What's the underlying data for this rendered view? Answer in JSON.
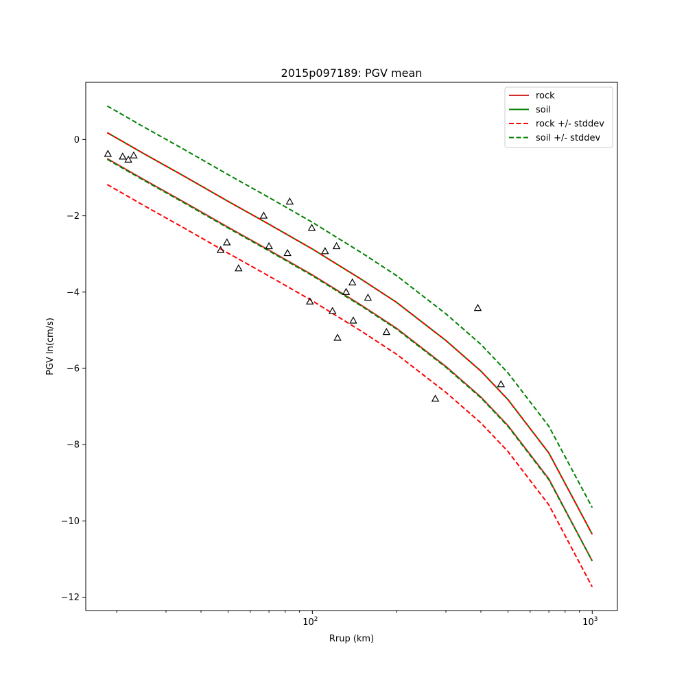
{
  "chart_data": {
    "type": "line",
    "title": "2015p097189: PGV mean",
    "xlabel": "Rrup (km)",
    "ylabel": "PGV ln(cm/s)",
    "xscale": "log",
    "xlim": [
      15.5,
      1230
    ],
    "ylim": [
      -12.35,
      1.5
    ],
    "grid": false,
    "legend_position": "top-right",
    "x_ticks": [
      {
        "value": 100,
        "label": "10",
        "sup": "2"
      },
      {
        "value": 1000,
        "label": "10",
        "sup": "3"
      }
    ],
    "y_ticks": [
      {
        "value": 0,
        "label": "0"
      },
      {
        "value": -2,
        "label": "−2"
      },
      {
        "value": -4,
        "label": "−4"
      },
      {
        "value": -6,
        "label": "−6"
      },
      {
        "value": -8,
        "label": "−8"
      },
      {
        "value": -10,
        "label": "−10"
      },
      {
        "value": -12,
        "label": "−12"
      }
    ],
    "x": [
      18.5,
      25,
      35,
      50,
      70,
      100,
      150,
      200,
      300,
      400,
      500,
      700,
      1000
    ],
    "series": [
      {
        "name": "rock",
        "color": "#d62728",
        "dash": false,
        "role": "mean",
        "values": [
          -0.5,
          -1.05,
          -1.65,
          -2.3,
          -2.9,
          -3.55,
          -4.35,
          -4.95,
          -5.95,
          -6.75,
          -7.5,
          -8.9,
          -11.05
        ]
      },
      {
        "name": "soil",
        "color": "#008000",
        "dash": false,
        "role": "mean",
        "values": [
          0.18,
          -0.37,
          -0.97,
          -1.62,
          -2.22,
          -2.87,
          -3.67,
          -4.27,
          -5.27,
          -6.07,
          -6.82,
          -8.22,
          -10.35
        ]
      },
      {
        "name": "rock +/- stddev",
        "color": "#ff0000",
        "dash": true,
        "role": "band",
        "values": [
          0.18,
          -0.37,
          -0.97,
          -1.62,
          -2.22,
          -2.87,
          -3.67,
          -4.27,
          -5.27,
          -6.07,
          -6.82,
          -8.22,
          -10.35
        ],
        "values_lower": [
          -1.18,
          -1.73,
          -2.33,
          -2.98,
          -3.58,
          -4.23,
          -5.03,
          -5.63,
          -6.63,
          -7.43,
          -8.18,
          -9.58,
          -11.73
        ]
      },
      {
        "name": "soil +/- stddev",
        "color": "#008000",
        "dash": true,
        "role": "band",
        "values": [
          0.88,
          0.33,
          -0.27,
          -0.92,
          -1.52,
          -2.17,
          -2.97,
          -3.57,
          -4.57,
          -5.37,
          -6.12,
          -7.52,
          -9.65
        ],
        "values_lower": [
          -0.52,
          -1.07,
          -1.67,
          -2.32,
          -2.92,
          -3.57,
          -4.37,
          -4.97,
          -5.97,
          -6.77,
          -7.52,
          -8.92,
          -11.05
        ]
      }
    ],
    "observations": [
      {
        "x": 18.6,
        "y": -0.38
      },
      {
        "x": 21.0,
        "y": -0.45
      },
      {
        "x": 22.0,
        "y": -0.53
      },
      {
        "x": 23.0,
        "y": -0.42
      },
      {
        "x": 47,
        "y": -2.9
      },
      {
        "x": 49.5,
        "y": -2.7
      },
      {
        "x": 54.5,
        "y": -3.38
      },
      {
        "x": 67,
        "y": -2.0
      },
      {
        "x": 70,
        "y": -2.8
      },
      {
        "x": 81.5,
        "y": -2.98
      },
      {
        "x": 83,
        "y": -1.63
      },
      {
        "x": 98,
        "y": -4.25
      },
      {
        "x": 99.5,
        "y": -2.32
      },
      {
        "x": 111,
        "y": -2.93
      },
      {
        "x": 118,
        "y": -4.5
      },
      {
        "x": 122,
        "y": -2.8
      },
      {
        "x": 123,
        "y": -5.2
      },
      {
        "x": 132,
        "y": -4.0
      },
      {
        "x": 139,
        "y": -3.75
      },
      {
        "x": 140,
        "y": -4.75
      },
      {
        "x": 158,
        "y": -4.15
      },
      {
        "x": 184,
        "y": -5.05
      },
      {
        "x": 275,
        "y": -6.8
      },
      {
        "x": 390,
        "y": -4.42
      },
      {
        "x": 472,
        "y": -6.42
      }
    ]
  }
}
